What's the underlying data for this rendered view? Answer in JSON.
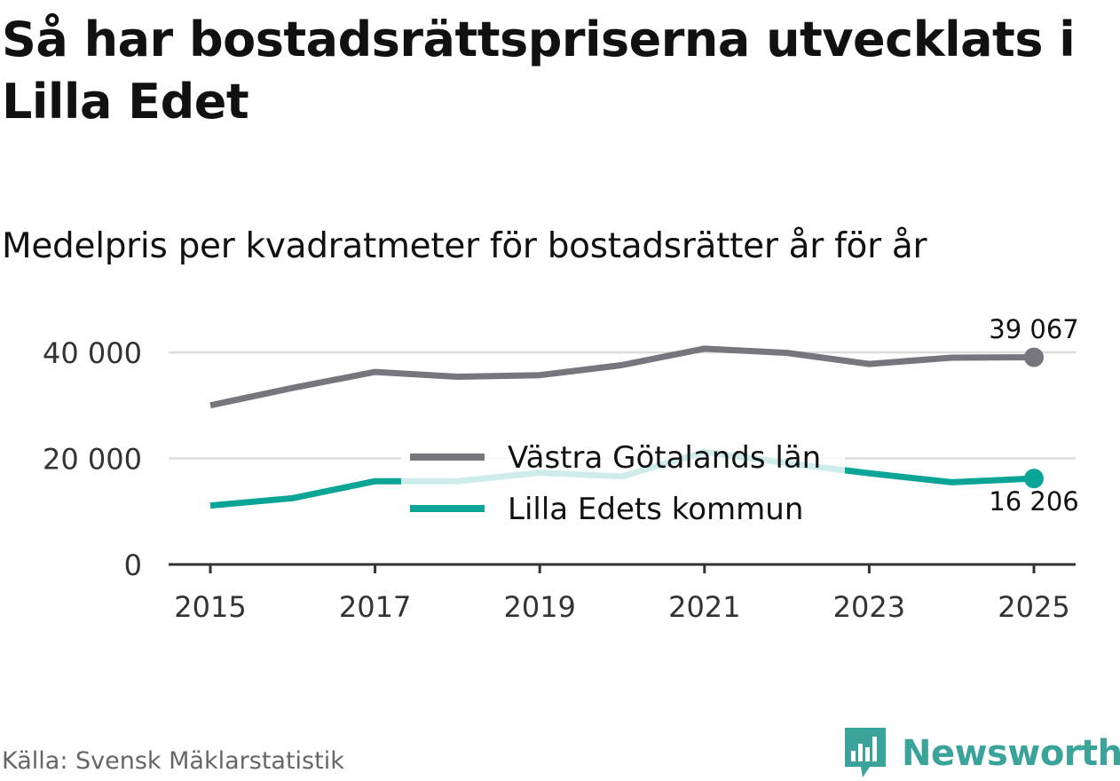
{
  "header": {
    "title": "Så har bostadsrättspriserna utvecklats i Lilla Edet",
    "subtitle": "Medelpris per kvadratmeter för bostadsrätter år för år"
  },
  "footer": {
    "source": "Källa: Svensk Mäklarstatistik",
    "brand": "Newsworthy"
  },
  "colors": {
    "gray_series": "#77767c",
    "teal_series": "#0aa597",
    "teal_faded": "#cdebe8",
    "grid": "#dddddd",
    "axis": "#333333",
    "tick_text": "#333333",
    "brand": "#3aa39a"
  },
  "chart_data": {
    "type": "line",
    "title": "Så har bostadsrättspriserna utvecklats i Lilla Edet",
    "subtitle": "Medelpris per kvadratmeter för bostadsrätter år för år",
    "xlabel": "",
    "ylabel": "",
    "x": [
      2015,
      2016,
      2017,
      2018,
      2019,
      2020,
      2021,
      2022,
      2023,
      2024,
      2025
    ],
    "xticks": [
      2015,
      2017,
      2019,
      2021,
      2023,
      2025
    ],
    "xtick_labels": [
      "2015",
      "2017",
      "2019",
      "2021",
      "2023",
      "2025"
    ],
    "yticks": [
      0,
      20000,
      40000
    ],
    "ytick_labels": [
      "0",
      "20 000",
      "40 000"
    ],
    "ylim": [
      0,
      41000
    ],
    "grid": true,
    "legend_position": "center",
    "series": [
      {
        "name": "Västra Götalands län",
        "values": [
          30000,
          33300,
          36300,
          35400,
          35700,
          37600,
          40700,
          39900,
          37800,
          39000,
          39067
        ],
        "end_label": "39 067"
      },
      {
        "name": "Lilla Edets kommun",
        "values": [
          11100,
          12500,
          15700,
          15700,
          17300,
          16600,
          21200,
          19100,
          17200,
          15500,
          16206
        ],
        "end_label": "16 206"
      }
    ]
  }
}
